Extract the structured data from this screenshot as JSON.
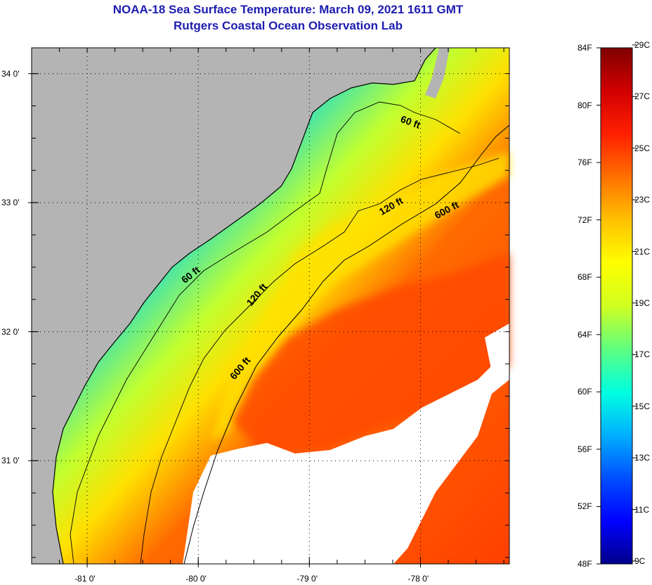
{
  "header": {
    "title": "NOAA-18 Sea Surface Temperature:  March 09, 2021 1611 GMT",
    "subtitle": "Rutgers Coastal Ocean Observation Lab"
  },
  "map": {
    "lat_ticks": [
      {
        "lat": 34.0,
        "label": "34 0'"
      },
      {
        "lat": 33.0,
        "label": "33 0'"
      },
      {
        "lat": 32.0,
        "label": "32 0'"
      },
      {
        "lat": 31.0,
        "label": "31 0'"
      }
    ],
    "lon_ticks": [
      {
        "lon": -81.0,
        "label": "-81 0'"
      },
      {
        "lon": -80.0,
        "label": "-80 0'"
      },
      {
        "lon": -79.0,
        "label": "-79 0'"
      },
      {
        "lon": -78.0,
        "label": "-78 0'"
      }
    ],
    "lat_range": [
      30.2,
      34.2
    ],
    "lon_range": [
      -81.5,
      -77.2
    ],
    "depth_contour_labels": [
      {
        "text": "60 ft",
        "lon": -78.1,
        "lat": 33.6
      },
      {
        "text": "120 ft",
        "lon": -78.25,
        "lat": 32.95
      },
      {
        "text": "600 ft",
        "lon": -77.75,
        "lat": 32.92
      },
      {
        "text": "60 ft",
        "lon": -80.05,
        "lat": 32.42
      },
      {
        "text": "120 ft",
        "lon": -79.45,
        "lat": 32.27
      },
      {
        "text": "600 ft",
        "lon": -79.6,
        "lat": 31.7
      }
    ],
    "colors": {
      "land": "#b4b4b4",
      "cloud": "#ffffff",
      "contour": "#000000"
    }
  },
  "colorbar": {
    "fahrenheit_ticks": [
      {
        "value": 84,
        "label": "84F"
      },
      {
        "value": 80,
        "label": "80F"
      },
      {
        "value": 76,
        "label": "76F"
      },
      {
        "value": 72,
        "label": "72F"
      },
      {
        "value": 68,
        "label": "68F"
      },
      {
        "value": 64,
        "label": "64F"
      },
      {
        "value": 60,
        "label": "60F"
      },
      {
        "value": 56,
        "label": "56F"
      },
      {
        "value": 52,
        "label": "52F"
      },
      {
        "value": 48,
        "label": "48F"
      }
    ],
    "celsius_ticks": [
      {
        "value": 29,
        "label": "29C"
      },
      {
        "value": 27,
        "label": "27C"
      },
      {
        "value": 25,
        "label": "25C"
      },
      {
        "value": 23,
        "label": "23C"
      },
      {
        "value": 21,
        "label": "21C"
      },
      {
        "value": 19,
        "label": "19C"
      },
      {
        "value": 17,
        "label": "17C"
      },
      {
        "value": 15,
        "label": "15C"
      },
      {
        "value": 13,
        "label": "13C"
      },
      {
        "value": 11,
        "label": "11C"
      },
      {
        "value": 9,
        "label": "9C"
      }
    ],
    "range_f": [
      48,
      84
    ],
    "gradient": [
      "#00008b",
      "#0000ff",
      "#0050ff",
      "#00b0ff",
      "#00ffe0",
      "#60ff80",
      "#d0ff20",
      "#ffff00",
      "#ffc000",
      "#ff7000",
      "#ff2000",
      "#d00000",
      "#800000"
    ]
  }
}
